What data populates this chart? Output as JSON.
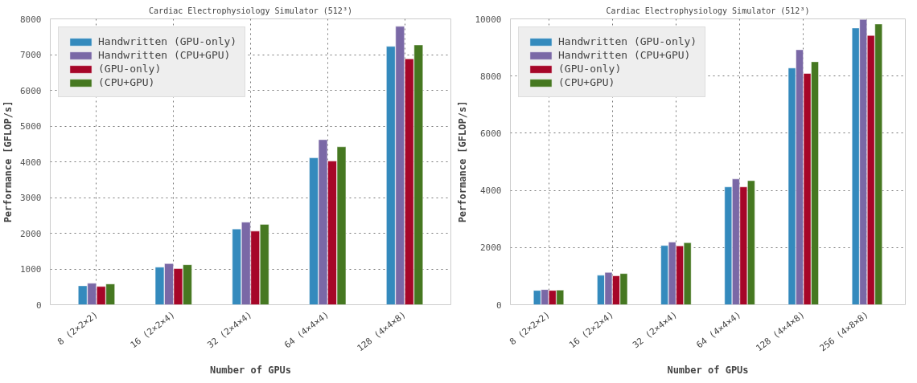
{
  "chart_data": [
    {
      "type": "bar",
      "title": "Cardiac Electrophysiology Simulator (512³)",
      "xlabel": "Number of GPUs",
      "ylabel": "Performance [GFLOP/s]",
      "categories": [
        "8 (2×2×2)",
        "16 (2×2×4)",
        "32 (2×4×4)",
        "64 (4×4×4)",
        "128 (4×4×8)"
      ],
      "series": [
        {
          "name": "Handwritten (GPU-only)",
          "color": "#348abd",
          "values": [
            530,
            1050,
            2120,
            4110,
            7230
          ]
        },
        {
          "name": "Handwritten (CPU+GPU)",
          "color": "#7a68a6",
          "values": [
            600,
            1150,
            2310,
            4620,
            7790
          ]
        },
        {
          "name": "(GPU-only)",
          "color": "#a60628",
          "values": [
            510,
            1010,
            2060,
            4020,
            6880
          ]
        },
        {
          "name": "(CPU+GPU)",
          "color": "#467821",
          "values": [
            580,
            1120,
            2250,
            4420,
            7270
          ]
        }
      ],
      "ylim": [
        0,
        8000
      ],
      "yticks": [
        0,
        1000,
        2000,
        3000,
        4000,
        5000,
        6000,
        7000,
        8000
      ],
      "grid": true,
      "legend": "top left"
    },
    {
      "type": "bar",
      "title": "Cardiac Electrophysiology Simulator (512³)",
      "xlabel": "Number of GPUs",
      "ylabel": "Performance [GFLOP/s]",
      "categories": [
        "8 (2×2×2)",
        "16 (2×2×4)",
        "32 (2×4×4)",
        "64 (4×4×4)",
        "128 (4×4×8)",
        "256 (4×8×8)"
      ],
      "series": [
        {
          "name": "Handwritten (GPU-only)",
          "color": "#348abd",
          "values": [
            500,
            1030,
            2070,
            4120,
            8280,
            9680
          ]
        },
        {
          "name": "Handwritten (CPU+GPU)",
          "color": "#7a68a6",
          "values": [
            530,
            1130,
            2190,
            4400,
            8920,
            9980
          ]
        },
        {
          "name": "(GPU-only)",
          "color": "#a60628",
          "values": [
            500,
            1010,
            2060,
            4120,
            8090,
            9420
          ]
        },
        {
          "name": "(CPU+GPU)",
          "color": "#467821",
          "values": [
            510,
            1090,
            2170,
            4340,
            8500,
            9820
          ]
        }
      ],
      "ylim": [
        0,
        10000
      ],
      "yticks": [
        0,
        2000,
        4000,
        6000,
        8000,
        10000
      ],
      "grid": true,
      "legend": "top left"
    }
  ]
}
